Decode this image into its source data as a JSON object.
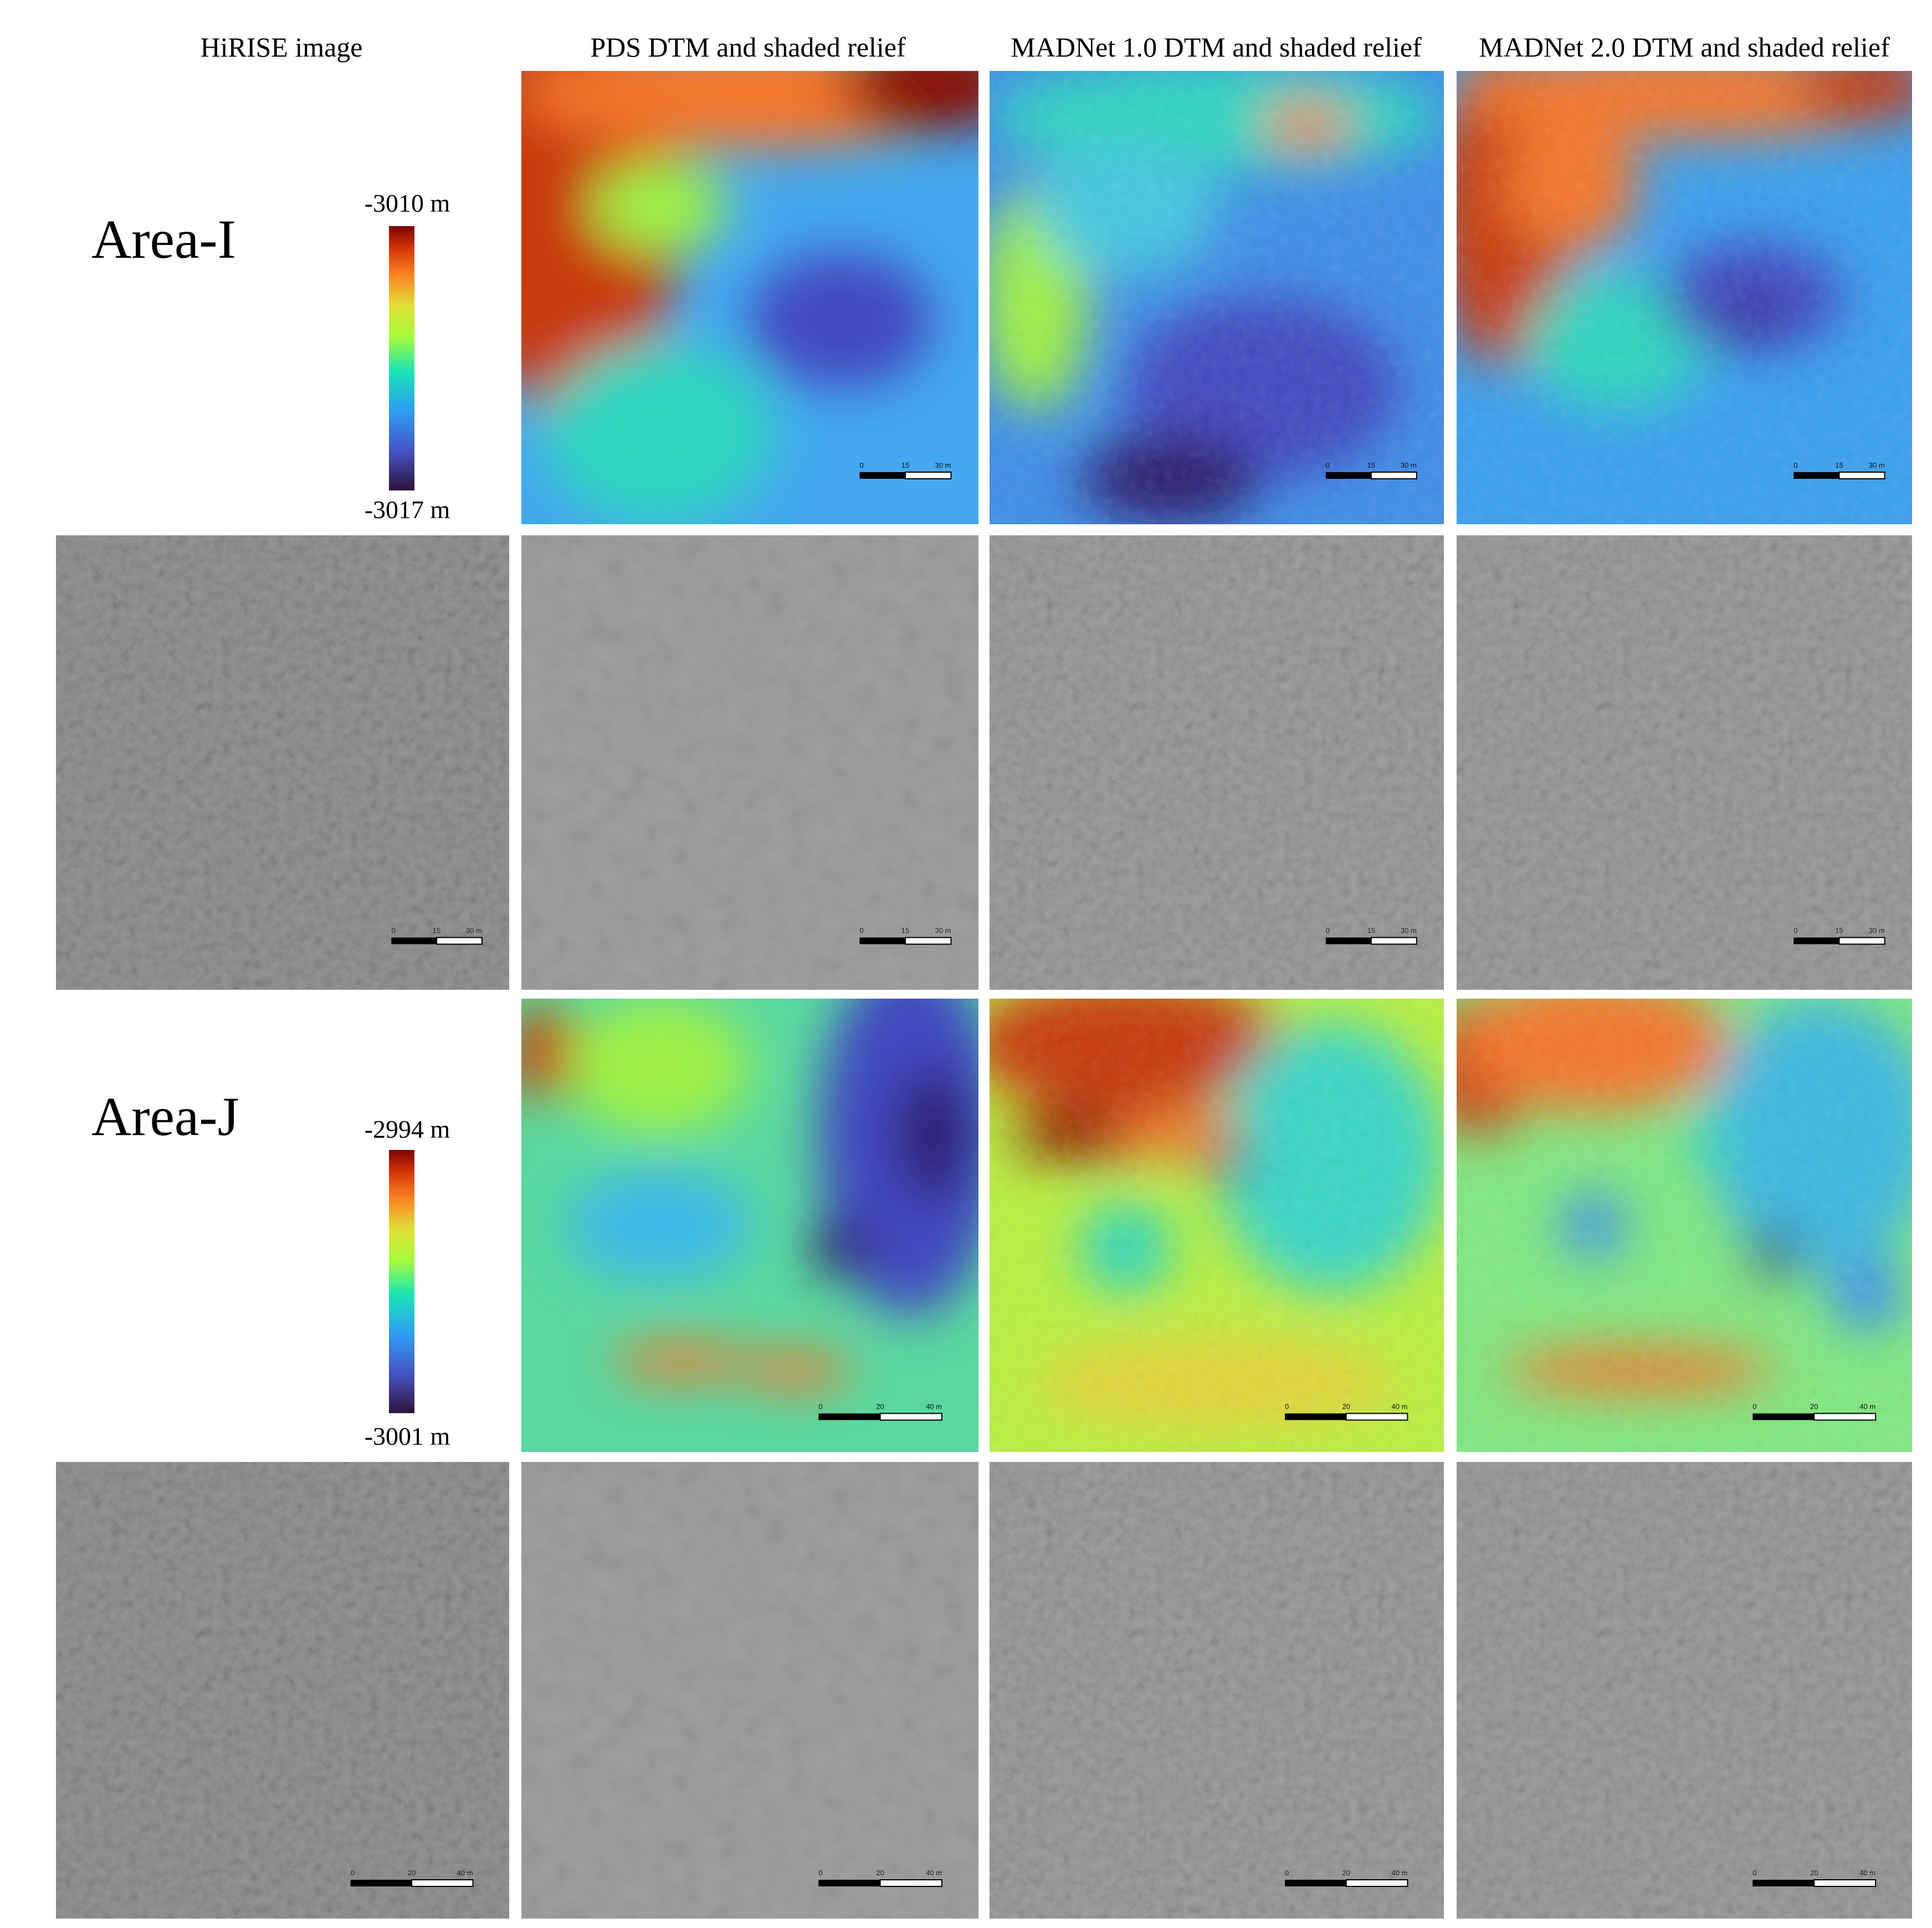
{
  "columns": [
    {
      "header": "HiRISE image"
    },
    {
      "header": "PDS DTM and shaded relief"
    },
    {
      "header": "MADNet 1.0 DTM and shaded relief"
    },
    {
      "header": "MADNet 2.0 DTM and shaded relief"
    }
  ],
  "areas": [
    {
      "label": "Area-I",
      "colorbar": {
        "max": "-3010 m",
        "min": "-3017 m"
      },
      "scale_bar": [
        "0",
        "15",
        "30 m"
      ]
    },
    {
      "label": "Area-J",
      "colorbar": {
        "max": "-2994 m",
        "min": "-3001 m"
      },
      "scale_bar": [
        "0",
        "20",
        "40 m"
      ]
    }
  ]
}
